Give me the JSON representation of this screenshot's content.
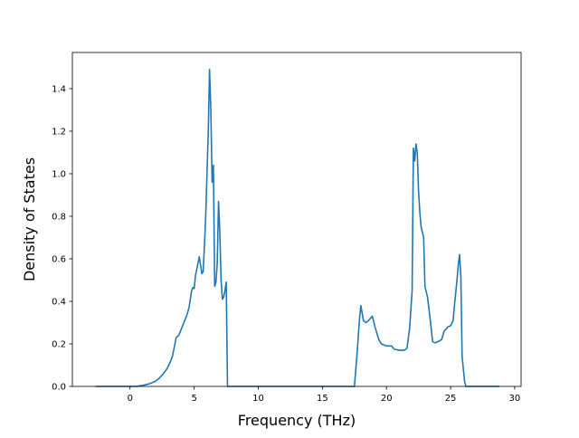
{
  "chart_data": {
    "type": "line",
    "title": "",
    "xlabel": "Frequency (THz)",
    "ylabel": "Density of States",
    "xlim": [
      -4.5,
      30.5
    ],
    "ylim": [
      0.0,
      1.57
    ],
    "xticks": [
      0,
      5,
      10,
      15,
      20,
      25,
      30
    ],
    "xtick_labels": [
      "0",
      "5",
      "10",
      "15",
      "20",
      "25",
      "30"
    ],
    "yticks": [
      0.0,
      0.2,
      0.4,
      0.6,
      0.8,
      1.0,
      1.2,
      1.4
    ],
    "ytick_labels": [
      "0.0",
      "0.2",
      "0.4",
      "0.6",
      "0.8",
      "1.0",
      "1.2",
      "1.4"
    ],
    "grid": false,
    "legend": false,
    "line_color": "#1f77b4",
    "series": [
      {
        "x": [
          -2.7,
          -2.0,
          -1.0,
          0.0,
          0.5,
          1.0,
          1.5,
          2.0,
          2.3,
          2.6,
          2.9,
          3.1,
          3.3,
          3.5,
          3.6,
          3.8,
          4.0,
          4.2,
          4.4,
          4.6,
          4.8,
          4.9,
          5.0,
          5.1,
          5.2,
          5.3,
          5.4,
          5.5,
          5.6,
          5.7,
          5.8,
          5.9,
          6.0,
          6.1,
          6.2,
          6.3,
          6.4,
          6.5,
          6.6,
          6.7,
          6.8,
          6.9,
          7.0,
          7.1,
          7.2,
          7.3,
          7.4,
          7.5,
          7.6,
          7.7,
          7.8,
          7.9,
          8.0,
          8.1,
          8.2,
          8.3,
          8.5,
          10.0,
          15.0,
          17.5,
          17.7,
          17.9,
          18.0,
          18.2,
          18.4,
          18.6,
          18.9,
          19.1,
          19.4,
          19.6,
          20.0,
          20.4,
          20.6,
          21.0,
          21.4,
          21.6,
          21.8,
          22.0,
          22.1,
          22.2,
          22.3,
          22.4,
          22.5,
          22.6,
          22.7,
          22.9,
          23.0,
          23.2,
          23.4,
          23.6,
          23.8,
          24.0,
          24.3,
          24.5,
          24.8,
          25.0,
          25.2,
          25.3,
          25.5,
          25.6,
          25.7,
          25.8,
          25.9,
          26.0,
          26.1,
          26.2,
          26.5,
          27.5,
          28.8
        ],
        "y": [
          0.0,
          0.0,
          0.0,
          0.0,
          0.0,
          0.005,
          0.012,
          0.025,
          0.04,
          0.06,
          0.085,
          0.11,
          0.14,
          0.2,
          0.23,
          0.24,
          0.27,
          0.3,
          0.33,
          0.37,
          0.45,
          0.465,
          0.46,
          0.52,
          0.55,
          0.58,
          0.61,
          0.57,
          0.53,
          0.54,
          0.66,
          0.8,
          1.0,
          1.2,
          1.49,
          1.3,
          0.96,
          1.04,
          0.47,
          0.49,
          0.58,
          0.87,
          0.73,
          0.5,
          0.41,
          0.42,
          0.45,
          0.49,
          0.0,
          0.0,
          0.0,
          0.0,
          0.0,
          0.0,
          0.0,
          0.0,
          0.0,
          0.0,
          0.0,
          0.0,
          0.15,
          0.32,
          0.38,
          0.31,
          0.3,
          0.31,
          0.33,
          0.28,
          0.22,
          0.2,
          0.19,
          0.19,
          0.175,
          0.17,
          0.17,
          0.18,
          0.27,
          0.45,
          1.12,
          1.06,
          1.14,
          1.1,
          0.92,
          0.82,
          0.75,
          0.7,
          0.47,
          0.42,
          0.32,
          0.21,
          0.205,
          0.21,
          0.22,
          0.26,
          0.28,
          0.285,
          0.31,
          0.38,
          0.5,
          0.57,
          0.62,
          0.52,
          0.14,
          0.08,
          0.02,
          0.0,
          0.0,
          0.0,
          0.0
        ]
      }
    ]
  }
}
